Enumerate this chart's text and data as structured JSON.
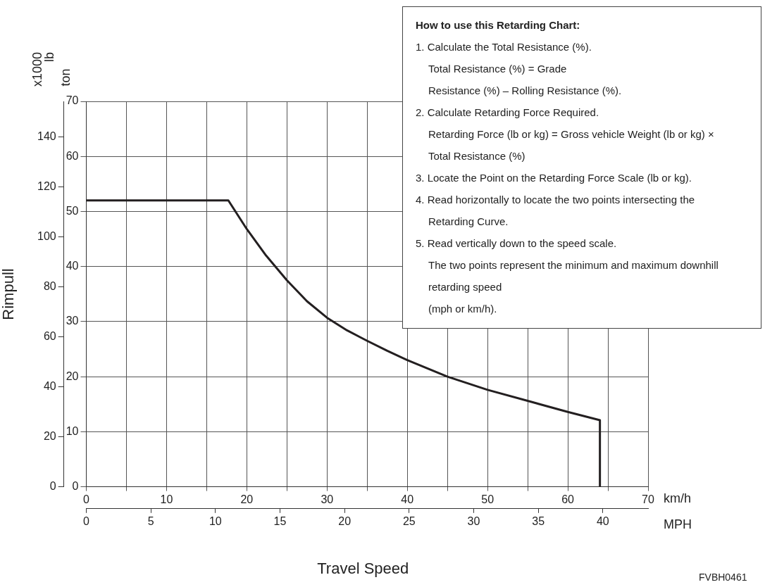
{
  "chart_data": {
    "type": "line",
    "xlabel": "km/h",
    "x2label": "MPH",
    "ylabel": "ton",
    "y2label": "x1000 lb",
    "x": [
      0,
      17.7,
      20,
      22.4,
      25,
      27.5,
      30,
      32.5,
      35,
      37.5,
      40,
      45,
      50,
      55,
      60,
      64,
      64
    ],
    "series": [
      {
        "color": "#231f20",
        "values": [
          52,
          52,
          46.8,
          42,
          37.5,
          33.7,
          30.7,
          28.4,
          26.5,
          24.7,
          23,
          20,
          17.6,
          15.6,
          13.6,
          12.1,
          0
        ]
      }
    ],
    "xlim": [
      0,
      70
    ],
    "xticks": [
      0,
      {
        "value": 5,
        "label": null
      },
      10,
      {
        "value": 15,
        "label": null
      },
      20,
      {
        "value": 25,
        "label": null
      },
      30,
      {
        "value": 35,
        "label": null
      },
      40,
      {
        "value": 45,
        "label": null
      },
      50,
      {
        "value": 55,
        "label": null
      },
      60,
      {
        "value": 65,
        "label": null
      },
      70
    ],
    "x2lim": [
      0,
      43.5
    ],
    "x2ticks": [
      0,
      5,
      10,
      15,
      20,
      25,
      30,
      35,
      40
    ],
    "ylim": [
      0,
      70
    ],
    "yticks": [
      0,
      10,
      20,
      30,
      40,
      50,
      60,
      70
    ],
    "y2lim": [
      0,
      154.3
    ],
    "y2ticks": [
      0,
      20,
      40,
      60,
      80,
      100,
      120,
      140
    ],
    "grid": true,
    "legend": false,
    "marker": "none",
    "line_style": "solid",
    "annotations": [
      "Rimpull",
      "Travel Speed",
      "How to use this Retarding Chart:",
      "1. Calculate the Total Resistance (%).\nTotal Resistance (%) = Grade\nResistance (%) – Rolling Resistance (%).",
      "2. Calculate Retarding Force Required.\nRetarding Force (lb or kg) = Gross vehicle Weight (lb or kg) ×\nTotal Resistance (%)",
      "3. Locate the Point on the Retarding Force Scale (lb or kg).",
      "4. Read horizontally to locate the two points intersecting the\nRetarding Curve.",
      "5. Read vertically down to the speed scale.\nThe two points represent the minimum and maximum downhill\nretarding speed\n(mph or km/h).",
      "FVBH0461"
    ]
  }
}
